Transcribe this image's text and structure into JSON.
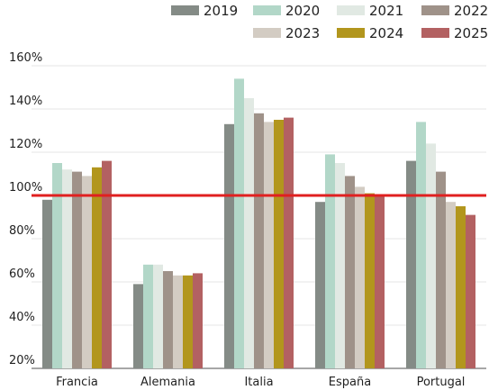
{
  "chart_data": {
    "type": "bar",
    "categories": [
      "Francia",
      "Alemania",
      "Italia",
      "España",
      "Portugal"
    ],
    "series": [
      {
        "name": "2019",
        "color": "#848b86",
        "values": [
          98,
          59,
          133,
          97,
          116
        ]
      },
      {
        "name": "2020",
        "color": "#b2d7c8",
        "values": [
          115,
          68,
          154,
          119,
          134
        ]
      },
      {
        "name": "2021",
        "color": "#e1e9e3",
        "values": [
          112,
          68,
          145,
          115,
          124
        ]
      },
      {
        "name": "2022",
        "color": "#9f9289",
        "values": [
          111,
          65,
          138,
          109,
          111
        ]
      },
      {
        "name": "2023",
        "color": "#d3ccc3",
        "values": [
          109,
          63,
          134,
          104,
          97
        ]
      },
      {
        "name": "2024",
        "color": "#b2961d",
        "values": [
          113,
          63,
          135,
          101,
          95
        ]
      },
      {
        "name": "2025",
        "color": "#b36162",
        "values": [
          116,
          64,
          136,
          100,
          91
        ]
      }
    ],
    "yticks": [
      "20%",
      "40%",
      "60%",
      "80%",
      "100%",
      "120%",
      "140%",
      "160%"
    ],
    "ytick_values": [
      20,
      40,
      60,
      80,
      100,
      120,
      140,
      160
    ],
    "ylim": [
      20,
      160
    ],
    "reference_line": {
      "value": 100,
      "color": "#e02020"
    },
    "grid": true,
    "legend": "top-right",
    "title": "",
    "xlabel": "",
    "ylabel": ""
  }
}
